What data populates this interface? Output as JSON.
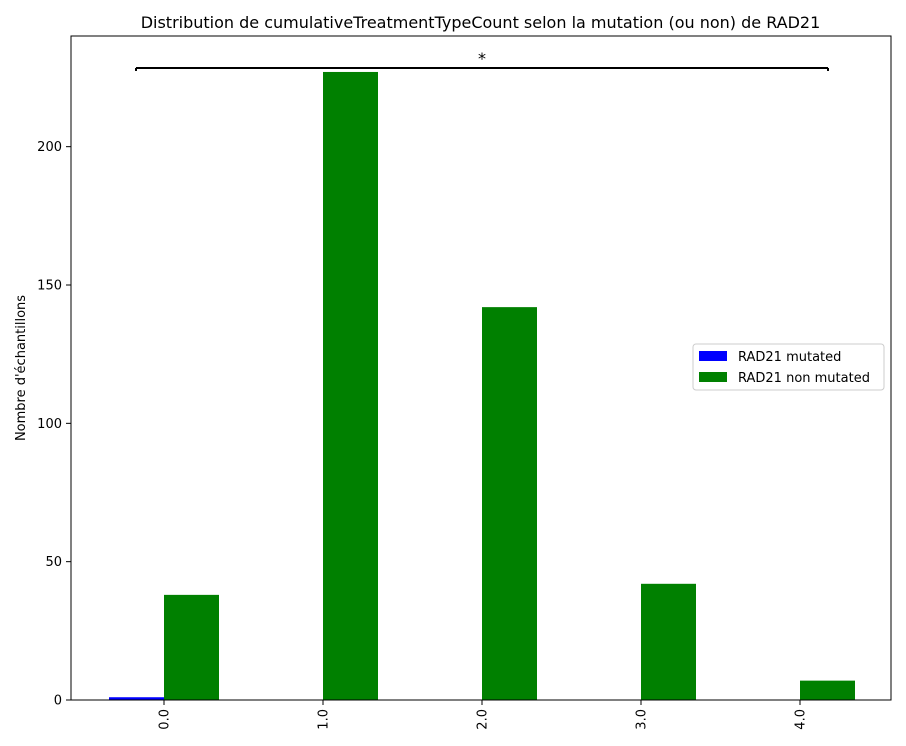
{
  "chart_data": {
    "type": "bar",
    "title": "Distribution de cumulativeTreatmentTypeCount selon la mutation (ou non) de RAD21",
    "xlabel": "",
    "ylabel": "Nombre d'échantillons",
    "categories": [
      "0.0",
      "1.0",
      "2.0",
      "3.0",
      "4.0"
    ],
    "series": [
      {
        "name": "RAD21 mutated",
        "color": "#0000ff",
        "values": [
          1,
          0,
          0,
          0,
          0
        ]
      },
      {
        "name": "RAD21 non mutated",
        "color": "#008000",
        "values": [
          38,
          227,
          142,
          42,
          7
        ]
      }
    ],
    "ylim": [
      0,
      240
    ],
    "yticks": [
      0,
      50,
      100,
      150,
      200
    ],
    "legend_position": "right",
    "grid": false,
    "significance": {
      "label": "*",
      "from_category": "0.0",
      "to_category": "4.0"
    }
  }
}
